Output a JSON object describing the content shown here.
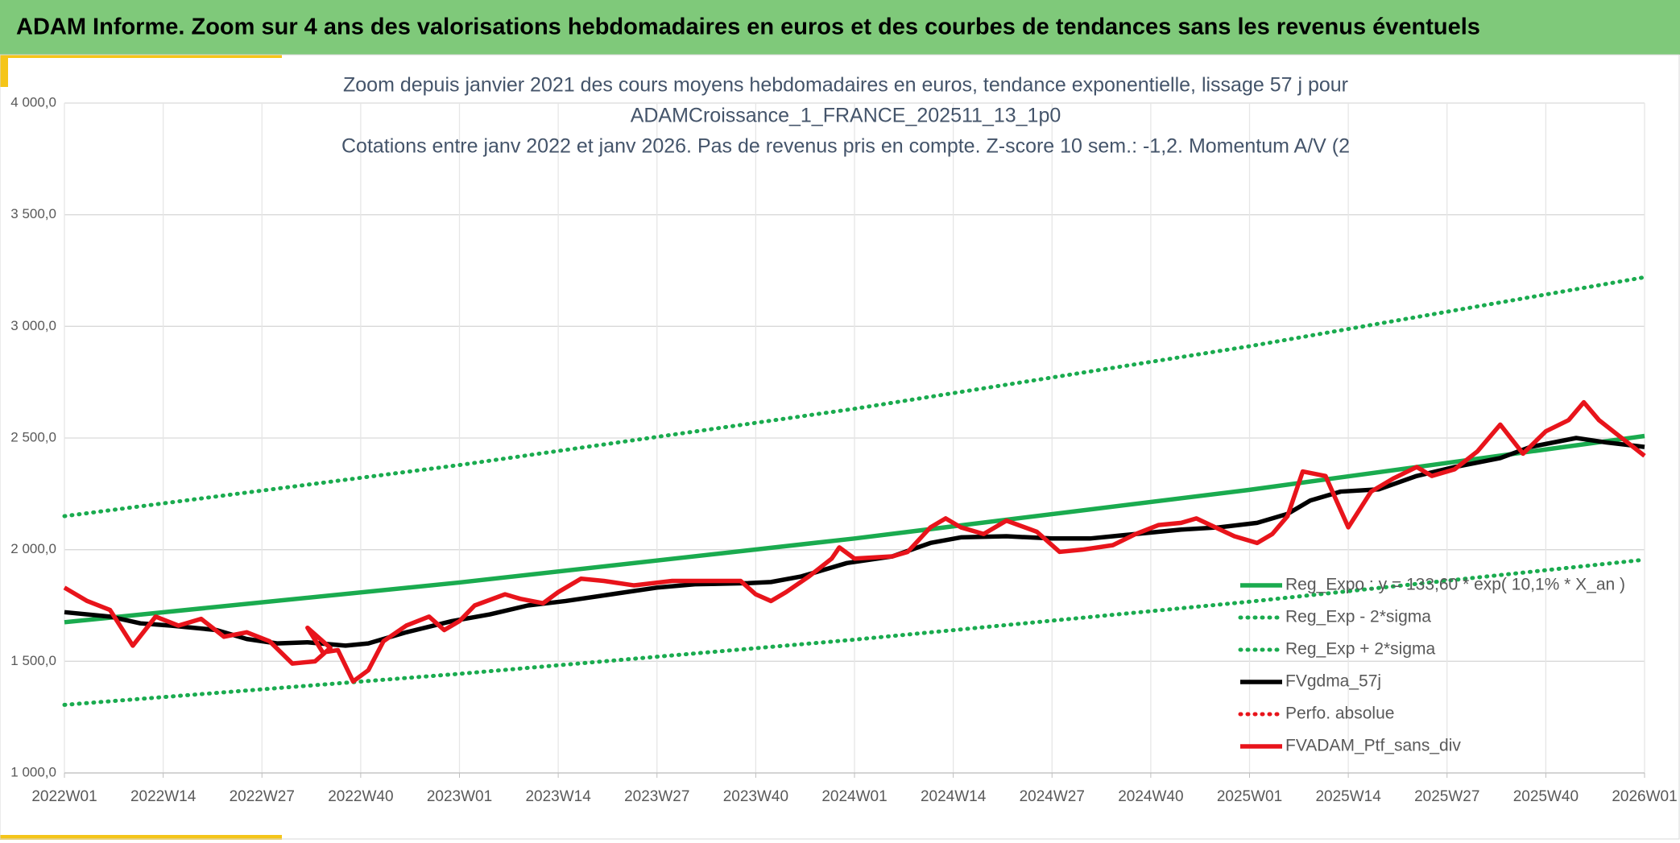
{
  "header": {
    "title": "ADAM Informe. Zoom sur 4 ans des valorisations hebdomadaires en euros et des courbes de tendances sans les revenus éventuels"
  },
  "chart_data": {
    "type": "line",
    "title": [
      "Zoom depuis janvier 2021 des cours moyens hebdomadaires en euros, tendance exponentielle, lissage 57 j pour",
      "ADAMCroissance_1_FRANCE_202511_13_1p0",
      "Cotations entre janv 2022 et janv 2026. Pas de revenus pris en compte. Z-score 10 sem.: -1,2. Momentum A/V (2"
    ],
    "xlim": [
      0,
      208
    ],
    "xticks": [
      {
        "value": 0,
        "label": "2022W01"
      },
      {
        "value": 13,
        "label": "2022W14"
      },
      {
        "value": 26,
        "label": "2022W27"
      },
      {
        "value": 39,
        "label": "2022W40"
      },
      {
        "value": 52,
        "label": "2023W01"
      },
      {
        "value": 65,
        "label": "2023W14"
      },
      {
        "value": 78,
        "label": "2023W27"
      },
      {
        "value": 91,
        "label": "2023W40"
      },
      {
        "value": 104,
        "label": "2024W01"
      },
      {
        "value": 117,
        "label": "2024W14"
      },
      {
        "value": 130,
        "label": "2024W27"
      },
      {
        "value": 143,
        "label": "2024W40"
      },
      {
        "value": 156,
        "label": "2025W01"
      },
      {
        "value": 169,
        "label": "2025W14"
      },
      {
        "value": 182,
        "label": "2025W27"
      },
      {
        "value": 195,
        "label": "2025W40"
      },
      {
        "value": 208,
        "label": "2026W01"
      }
    ],
    "ylim": [
      1000,
      4000
    ],
    "yticks": [
      {
        "value": 1000,
        "label": "1 000,0"
      },
      {
        "value": 1500,
        "label": "1 500,0"
      },
      {
        "value": 2000,
        "label": "2 000,0"
      },
      {
        "value": 2500,
        "label": "2 500,0"
      },
      {
        "value": 3000,
        "label": "3 000,0"
      },
      {
        "value": 3500,
        "label": "3 500,0"
      },
      {
        "value": 4000,
        "label": "4 000,0"
      }
    ],
    "grid": true,
    "series": [
      {
        "name": "Reg_Expo : y = 133,60 * exp( 10,1% *  X_an )",
        "color": "#1aab4f",
        "style": "solid",
        "x": [
          0,
          52,
          104,
          156,
          208
        ],
        "values": [
          1675,
          1853,
          2050,
          2268,
          2509
        ]
      },
      {
        "name": "Reg_Exp - 2*sigma",
        "color": "#1aab4f",
        "style": "dotted",
        "x": [
          0,
          52,
          104,
          156,
          208
        ],
        "values": [
          1305,
          1444,
          1597,
          1767,
          1955
        ]
      },
      {
        "name": "Reg_Exp + 2*sigma",
        "color": "#1aab4f",
        "style": "dotted",
        "x": [
          0,
          52,
          104,
          156,
          208
        ],
        "values": [
          2150,
          2379,
          2631,
          2911,
          3220
        ]
      },
      {
        "name": "FVgdma_57j",
        "color": "#000000",
        "style": "solid",
        "x": [
          0,
          6,
          10,
          14,
          20,
          24,
          28,
          32,
          37,
          40,
          45,
          51,
          56,
          61,
          66,
          72,
          78,
          83,
          90,
          93,
          97,
          103,
          109,
          114,
          118,
          124,
          130,
          135,
          141,
          147,
          152,
          157,
          161,
          164,
          168,
          173,
          178,
          183,
          189,
          193,
          199,
          203,
          208
        ],
        "values": [
          1720,
          1700,
          1670,
          1660,
          1640,
          1600,
          1580,
          1585,
          1570,
          1580,
          1630,
          1680,
          1710,
          1750,
          1770,
          1800,
          1830,
          1845,
          1850,
          1855,
          1880,
          1940,
          1970,
          2030,
          2055,
          2060,
          2050,
          2050,
          2070,
          2090,
          2100,
          2120,
          2160,
          2220,
          2260,
          2270,
          2330,
          2370,
          2410,
          2460,
          2500,
          2480,
          2460
        ]
      },
      {
        "name": "Perfo. absolue",
        "color": "#e8141b",
        "style": "dotted",
        "x": [],
        "values": []
      },
      {
        "name": "FVADAM_Ptf_sans_div",
        "color": "#e8141b",
        "style": "solid",
        "x": [
          0,
          3,
          6,
          9,
          12,
          15,
          18,
          21,
          24,
          27,
          30,
          33,
          35,
          32,
          34,
          36,
          38,
          40,
          42,
          45,
          48,
          50,
          52,
          54,
          58,
          60,
          63,
          65,
          68,
          71,
          75,
          80,
          85,
          89,
          91,
          93,
          95,
          98,
          101,
          102,
          104,
          109,
          111,
          114,
          116,
          118,
          121,
          124,
          128,
          131,
          134,
          138,
          141,
          144,
          147,
          149,
          154,
          157,
          159,
          161,
          163,
          166,
          169,
          172,
          175,
          178,
          180,
          183,
          186,
          189,
          192,
          195,
          198,
          200,
          202,
          205,
          208
        ],
        "values": [
          1830,
          1770,
          1730,
          1570,
          1700,
          1660,
          1690,
          1610,
          1630,
          1590,
          1490,
          1500,
          1560,
          1650,
          1540,
          1550,
          1410,
          1460,
          1590,
          1660,
          1700,
          1640,
          1680,
          1750,
          1800,
          1780,
          1760,
          1810,
          1870,
          1860,
          1840,
          1860,
          1860,
          1860,
          1800,
          1770,
          1810,
          1880,
          1960,
          2010,
          1960,
          1970,
          1990,
          2100,
          2140,
          2100,
          2070,
          2130,
          2080,
          1990,
          2000,
          2020,
          2070,
          2110,
          2120,
          2140,
          2060,
          2030,
          2070,
          2150,
          2350,
          2330,
          2100,
          2260,
          2320,
          2370,
          2330,
          2360,
          2440,
          2560,
          2430,
          2530,
          2580,
          2660,
          2580,
          2500,
          2420
        ]
      }
    ],
    "legend": "lower-right"
  }
}
